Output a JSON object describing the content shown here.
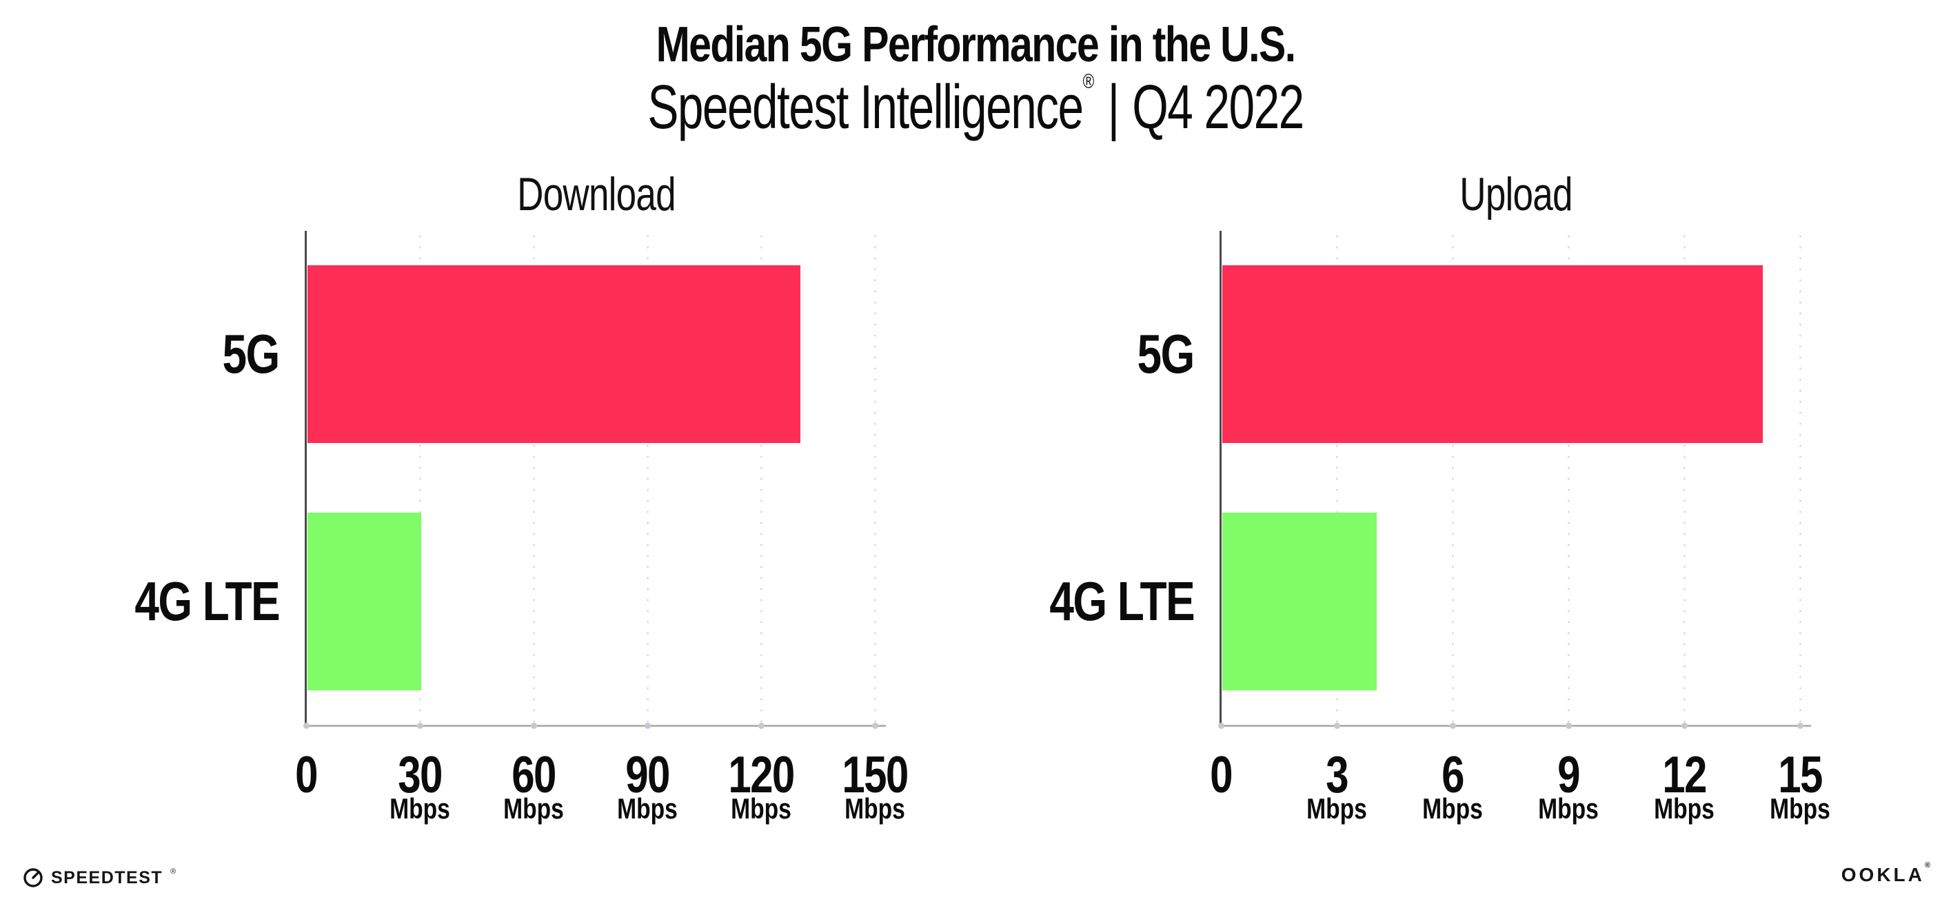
{
  "title": "Median 5G Performance in the U.S.",
  "subtitle": {
    "brand": "Speedtest Intelligence",
    "reg": "®",
    "separator": "|",
    "period": "Q4 2022"
  },
  "chart_data": [
    {
      "type": "bar",
      "orientation": "horizontal",
      "title": "Download",
      "categories": [
        "5G",
        "4G LTE"
      ],
      "values": [
        130,
        30
      ],
      "unit": "Mbps",
      "xlim": [
        0,
        150
      ],
      "xticks": [
        0,
        30,
        60,
        90,
        120,
        150
      ],
      "bar_colors": [
        "#FD2D56",
        "#80FC66"
      ],
      "grid": "dotted-vertical",
      "legend": "none"
    },
    {
      "type": "bar",
      "orientation": "horizontal",
      "title": "Upload",
      "categories": [
        "5G",
        "4G LTE"
      ],
      "values": [
        14,
        4
      ],
      "unit": "Mbps",
      "xlim": [
        0,
        15
      ],
      "xticks": [
        0,
        3,
        6,
        9,
        12,
        15
      ],
      "bar_colors": [
        "#FD2D56",
        "#80FC66"
      ],
      "grid": "dotted-vertical",
      "legend": "none"
    }
  ],
  "colors": {
    "accent_pink": "#FD2D56",
    "accent_green": "#80FC66",
    "axis_gray": "#b3b3b7",
    "text_black": "#0b0b0c"
  },
  "footer": {
    "speedtest": "SPEEDTEST",
    "speedtest_mark": "®",
    "ookla": "OOKLA",
    "ookla_mark": "®"
  }
}
